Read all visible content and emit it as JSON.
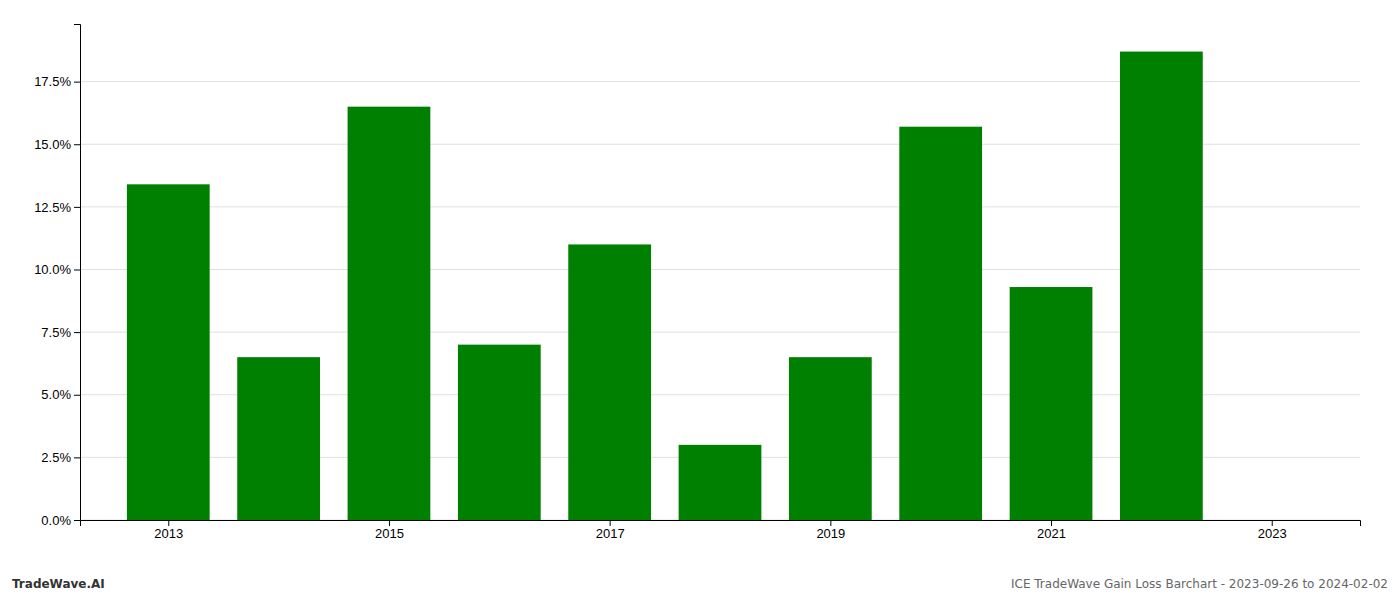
{
  "chart_data": {
    "type": "bar",
    "x": [
      2013,
      2014,
      2015,
      2016,
      2017,
      2018,
      2019,
      2020,
      2021,
      2022
    ],
    "values": [
      0.134,
      0.065,
      0.165,
      0.07,
      0.11,
      0.03,
      0.065,
      0.157,
      0.093,
      0.187
    ],
    "color": "#008000",
    "xlim": [
      2012.2,
      2023.8
    ],
    "xticks": [
      2013,
      2015,
      2017,
      2019,
      2021,
      2023
    ],
    "ylim": [
      0,
      0.198
    ],
    "yticks": [
      {
        "value": 0.0,
        "label": "0.0%"
      },
      {
        "value": 0.025,
        "label": "2.5%"
      },
      {
        "value": 0.05,
        "label": "5.0%"
      },
      {
        "value": 0.075,
        "label": "7.5%"
      },
      {
        "value": 0.1,
        "label": "10.0%"
      },
      {
        "value": 0.125,
        "label": "12.5%"
      },
      {
        "value": 0.15,
        "label": "15.0%"
      },
      {
        "value": 0.175,
        "label": "17.5%"
      }
    ],
    "grid": true,
    "annotations": [
      "TradeWave.AI",
      "ICE TradeWave Gain Loss Barchart - 2023-09-26 to 2024-02-02"
    ]
  }
}
